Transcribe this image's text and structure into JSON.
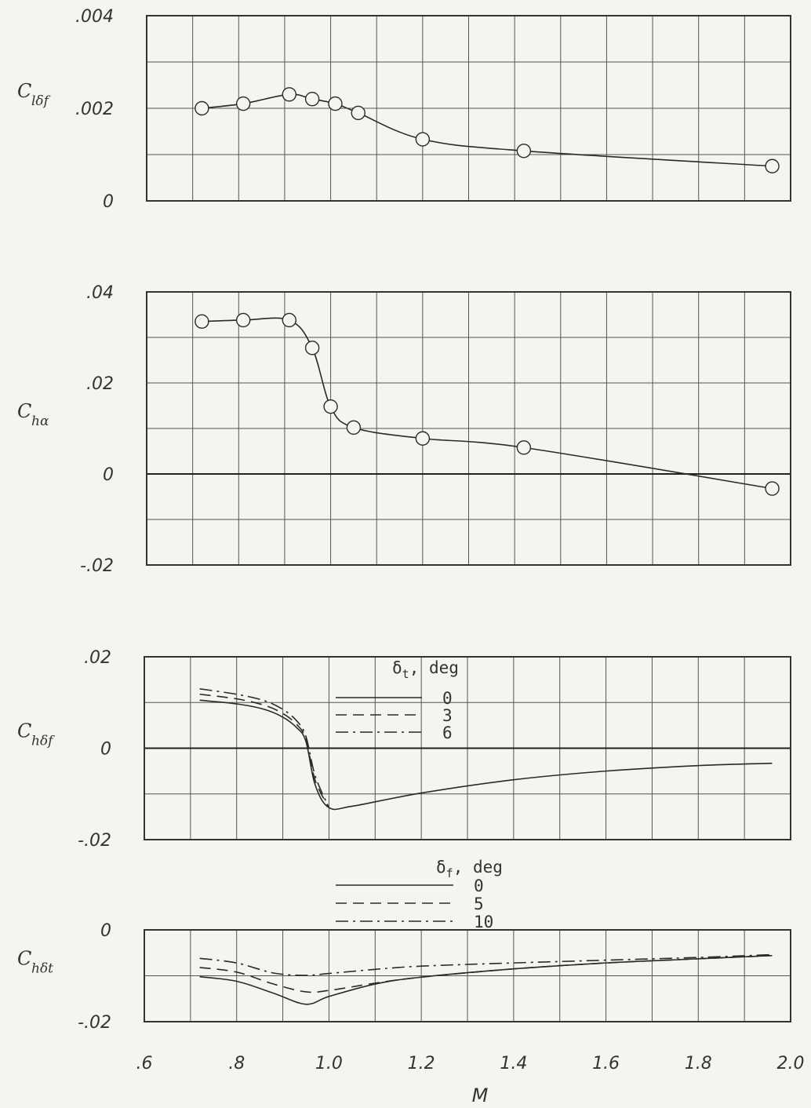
{
  "figure": {
    "xlabel": "M"
  },
  "chart_data": [
    {
      "type": "line",
      "id": "p1",
      "ylabel_main": "C",
      "ylabel_sub": "lδf",
      "xlim": [
        0.6,
        2.0
      ],
      "ylim": [
        0,
        0.004
      ],
      "yticks": [
        0,
        0.002,
        0.004
      ],
      "yticklabels": [
        "0",
        ".002",
        ".004"
      ],
      "grid": true,
      "markers": "circle",
      "series": [
        {
          "style": "solid",
          "x": [
            0.72,
            0.81,
            0.91,
            0.96,
            1.01,
            1.06,
            1.2,
            1.42,
            1.96
          ],
          "y": [
            0.002,
            0.0021,
            0.0023,
            0.0022,
            0.0021,
            0.0019,
            0.00133,
            0.00108,
            0.00075
          ]
        }
      ]
    },
    {
      "type": "line",
      "id": "p2",
      "ylabel_main": "C",
      "ylabel_sub": "hα",
      "xlim": [
        0.6,
        2.0
      ],
      "ylim": [
        -0.02,
        0.04
      ],
      "yticks": [
        -0.02,
        0,
        0.02,
        0.04
      ],
      "yticklabels": [
        "-.02",
        "0",
        ".02",
        ".04"
      ],
      "grid": true,
      "markers": "circle",
      "series": [
        {
          "style": "solid",
          "x": [
            0.72,
            0.81,
            0.91,
            0.96,
            1.0,
            1.05,
            1.2,
            1.42,
            1.96
          ],
          "y": [
            0.0335,
            0.0338,
            0.0338,
            0.0277,
            0.0148,
            0.0102,
            0.0078,
            0.0058,
            -0.0032
          ]
        }
      ]
    },
    {
      "type": "line",
      "id": "p3",
      "ylabel_main": "C",
      "ylabel_sub": "hδf",
      "xlim": [
        0.6,
        2.0
      ],
      "ylim": [
        -0.02,
        0.02
      ],
      "yticks": [
        -0.02,
        0,
        0.02
      ],
      "yticklabels": [
        "-.02",
        "0",
        ".02"
      ],
      "grid": true,
      "legend": {
        "title_symbol": "δ",
        "title_sub": "t",
        "title_rest": ", deg",
        "placement": "top-center"
      },
      "series": [
        {
          "name": "0",
          "style": "solid",
          "x": [
            0.72,
            0.8,
            0.86,
            0.9,
            0.93,
            0.95,
            0.97,
            1.0,
            1.05,
            1.2,
            1.4,
            1.6,
            1.8,
            1.96
          ],
          "y": [
            0.0105,
            0.0097,
            0.0085,
            0.0068,
            0.0045,
            0.0015,
            -0.008,
            -0.013,
            -0.0127,
            -0.0098,
            -0.0069,
            -0.005,
            -0.0038,
            -0.0033
          ]
        },
        {
          "name": "3",
          "style": "dashed",
          "x": [
            0.72,
            0.8,
            0.86,
            0.9,
            0.93,
            0.95,
            0.97,
            1.0
          ],
          "y": [
            0.0118,
            0.0108,
            0.0094,
            0.0076,
            0.0052,
            0.002,
            -0.007,
            -0.013
          ]
        },
        {
          "name": "6",
          "style": "dashdot",
          "x": [
            0.72,
            0.8,
            0.86,
            0.9,
            0.93,
            0.95,
            0.97,
            1.0
          ],
          "y": [
            0.013,
            0.0118,
            0.0104,
            0.0085,
            0.006,
            0.0026,
            -0.006,
            -0.013
          ]
        }
      ]
    },
    {
      "type": "line",
      "id": "p4",
      "ylabel_main": "C",
      "ylabel_sub": "hδt",
      "xlim": [
        0.6,
        2.0
      ],
      "ylim": [
        -0.02,
        0
      ],
      "yticks": [
        -0.02,
        0
      ],
      "yticklabels": [
        "-.02",
        "0"
      ],
      "xticks": [
        0.6,
        0.8,
        1.0,
        1.2,
        1.4,
        1.6,
        1.8,
        2.0
      ],
      "xticklabels": [
        ".6",
        ".8",
        "1.0",
        "1.2",
        "1.4",
        "1.6",
        "1.8",
        "2.0"
      ],
      "grid": true,
      "legend": {
        "title_symbol": "δ",
        "title_sub": "f",
        "title_rest": ", deg",
        "placement": "above-center"
      },
      "series": [
        {
          "name": "0",
          "style": "solid",
          "x": [
            0.72,
            0.8,
            0.88,
            0.95,
            1.0,
            1.1,
            1.2,
            1.4,
            1.6,
            1.8,
            1.96
          ],
          "y": [
            -0.0102,
            -0.0112,
            -0.0138,
            -0.0162,
            -0.0145,
            -0.0118,
            -0.0103,
            -0.0085,
            -0.0072,
            -0.0063,
            -0.0056
          ]
        },
        {
          "name": "5",
          "style": "dashed",
          "x": [
            0.72,
            0.8,
            0.88,
            0.95,
            1.0,
            1.1,
            1.2,
            1.4,
            1.6,
            1.8,
            1.96
          ],
          "y": [
            -0.0082,
            -0.0092,
            -0.0118,
            -0.0135,
            -0.0132,
            -0.0116,
            -0.0103,
            -0.0085,
            -0.0072,
            -0.0063,
            -0.0056
          ]
        },
        {
          "name": "10",
          "style": "dashdot",
          "x": [
            0.72,
            0.8,
            0.88,
            0.95,
            1.0,
            1.1,
            1.2,
            1.4,
            1.6,
            1.8,
            1.96
          ],
          "y": [
            -0.0062,
            -0.0072,
            -0.0094,
            -0.0099,
            -0.0095,
            -0.0086,
            -0.0079,
            -0.0072,
            -0.0066,
            -0.006,
            -0.0054
          ]
        }
      ]
    }
  ]
}
